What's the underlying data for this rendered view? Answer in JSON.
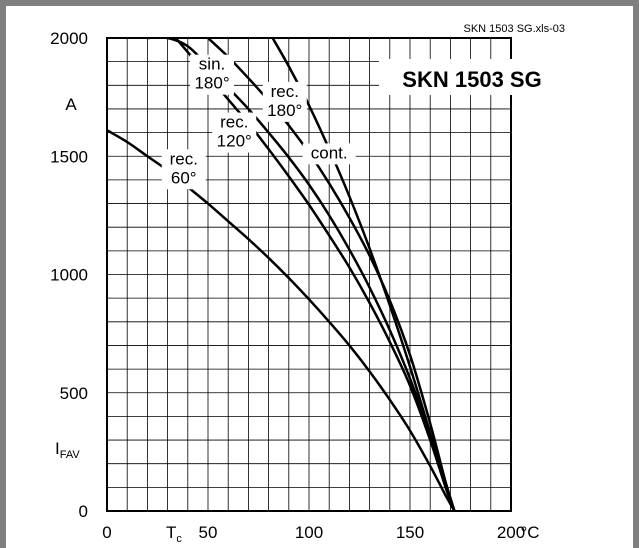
{
  "file_tag": "SKN 1503 SG.xls-03",
  "chart_data": {
    "type": "line",
    "title": "SKN 1503 SG",
    "xlim": [
      0,
      200
    ],
    "ylim": [
      0,
      2000
    ],
    "x_ticks": [
      0,
      50,
      100,
      150,
      200
    ],
    "x_tick_labels": [
      "0",
      "50",
      "100",
      "150",
      "200"
    ],
    "y_ticks": [
      0,
      500,
      1000,
      1500,
      2000
    ],
    "y_tick_labels": [
      "0",
      "500",
      "1000",
      "1500",
      "2000"
    ],
    "x_unit": "°C",
    "y_unit": "A",
    "xlabel": "T",
    "xlabel_sub": "c",
    "ylabel": "I",
    "ylabel_sub": "FAV",
    "grid": true,
    "series": [
      {
        "name": "rec. 60°",
        "x": [
          0,
          10,
          20,
          30,
          40,
          50,
          60,
          70,
          80,
          90,
          100,
          110,
          120,
          130,
          140,
          150,
          160,
          168,
          172
        ],
        "y": [
          1610,
          1560,
          1500,
          1440,
          1370,
          1300,
          1225,
          1150,
          1070,
          985,
          895,
          800,
          700,
          590,
          470,
          340,
          190,
          60,
          0
        ]
      },
      {
        "name": "rec. 120°",
        "x": [
          34,
          40,
          50,
          60,
          70,
          80,
          90,
          100,
          110,
          120,
          130,
          140,
          150,
          160,
          168,
          172
        ],
        "y": [
          2000,
          1940,
          1840,
          1740,
          1640,
          1530,
          1415,
          1295,
          1165,
          1030,
          880,
          715,
          530,
          300,
          90,
          0
        ]
      },
      {
        "name": "sin. 180°",
        "x": [
          20,
          30,
          40,
          50,
          60,
          70,
          80,
          90,
          100,
          110,
          120,
          130,
          140,
          150,
          160,
          168,
          172
        ],
        "y": [
          2000,
          2000,
          1965,
          1880,
          1790,
          1700,
          1600,
          1495,
          1380,
          1250,
          1105,
          945,
          765,
          560,
          320,
          100,
          0
        ]
      },
      {
        "name": "rec. 180°",
        "x": [
          50,
          60,
          70,
          80,
          90,
          100,
          110,
          120,
          130,
          140,
          150,
          160,
          168,
          172
        ],
        "y": [
          2000,
          1920,
          1830,
          1735,
          1630,
          1515,
          1385,
          1240,
          1080,
          890,
          660,
          370,
          110,
          0
        ]
      },
      {
        "name": "cont.",
        "x": [
          82,
          90,
          100,
          110,
          120,
          130,
          140,
          150,
          160,
          168,
          172
        ],
        "y": [
          2000,
          1880,
          1715,
          1530,
          1330,
          1110,
          870,
          610,
          330,
          110,
          0
        ]
      }
    ],
    "annotations": [
      {
        "lines": [
          "rec.",
          "60°"
        ],
        "x": 38,
        "y": 1445
      },
      {
        "lines": [
          "rec.",
          "120°"
        ],
        "x": 63,
        "y": 1600
      },
      {
        "lines": [
          "sin.",
          "180°"
        ],
        "x": 52,
        "y": 1845
      },
      {
        "lines": [
          "rec.",
          "180°"
        ],
        "x": 88,
        "y": 1730
      },
      {
        "lines": [
          "cont."
        ],
        "x": 110,
        "y": 1510
      }
    ]
  }
}
